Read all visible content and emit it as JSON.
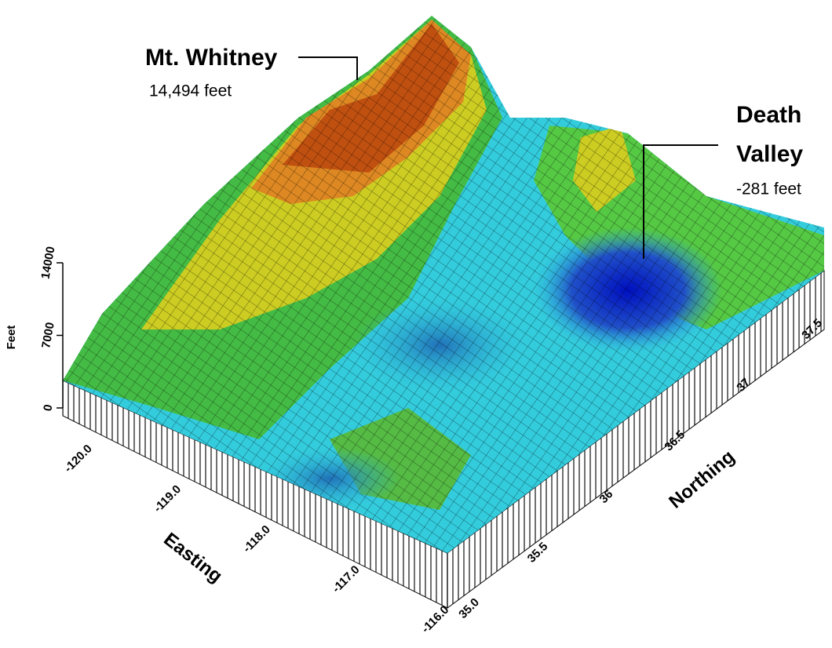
{
  "chart_data": {
    "type": "surface",
    "zlabel": "Feet",
    "zlim": [
      0,
      14000
    ],
    "zticks": [
      0,
      7000,
      14000
    ],
    "xlabel": "Easting",
    "xlim": [
      -120,
      -116
    ],
    "xticks": [
      {
        "value": -120,
        "label": "-120.0"
      },
      {
        "value": -119,
        "label": "-119.0"
      },
      {
        "value": -118,
        "label": "-118.0"
      },
      {
        "value": -117,
        "label": "-117.0"
      },
      {
        "value": -116,
        "label": "-116.0"
      }
    ],
    "ylabel": "Northing",
    "ylim": [
      35,
      37.5
    ],
    "yticks": [
      {
        "value": 35,
        "label": "35.0"
      },
      35.5,
      36,
      36.5,
      37,
      37.5
    ],
    "annotations": [
      {
        "title": "Mt. Whitney",
        "note": "14,494 feet"
      },
      {
        "title": [
          "Death",
          "Valley"
        ],
        "note": "-281 feet"
      }
    ]
  }
}
